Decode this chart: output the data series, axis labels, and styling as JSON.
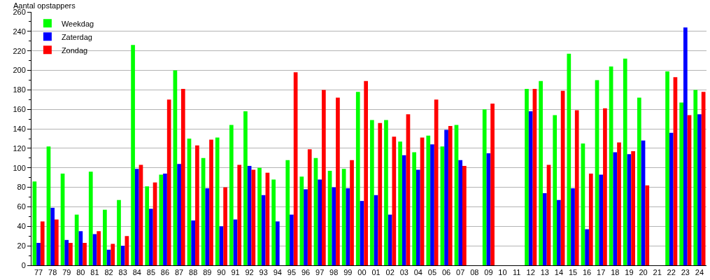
{
  "chart_data": {
    "type": "bar",
    "ylabel": "Aantal opstappers",
    "categories": [
      "77",
      "78",
      "79",
      "80",
      "81",
      "82",
      "83",
      "84",
      "85",
      "86",
      "87",
      "88",
      "89",
      "90",
      "91",
      "92",
      "93",
      "94",
      "95",
      "96",
      "97",
      "98",
      "99",
      "00",
      "01",
      "02",
      "03",
      "04",
      "05",
      "06",
      "07",
      "08",
      "09",
      "10",
      "11",
      "12",
      "13",
      "14",
      "15",
      "16",
      "17",
      "18",
      "19",
      "20",
      "21",
      "22",
      "23",
      "24"
    ],
    "series": [
      {
        "name": "Weekdag",
        "color": "#00ff00",
        "values": [
          86,
          122,
          94,
          52,
          96,
          57,
          67,
          226,
          81,
          93,
          200,
          130,
          110,
          131,
          144,
          158,
          100,
          88,
          108,
          91,
          110,
          97,
          99,
          178,
          149,
          149,
          127,
          116,
          133,
          122,
          144,
          null,
          160,
          null,
          null,
          181,
          189,
          154,
          217,
          125,
          190,
          204,
          212,
          172,
          null,
          199,
          167,
          180
        ]
      },
      {
        "name": "Zaterdag",
        "color": "#0000ff",
        "values": [
          23,
          59,
          26,
          35,
          32,
          16,
          20,
          99,
          58,
          94,
          104,
          46,
          79,
          40,
          47,
          102,
          72,
          45,
          52,
          78,
          88,
          80,
          79,
          66,
          72,
          52,
          113,
          98,
          124,
          139,
          108,
          null,
          115,
          null,
          null,
          158,
          74,
          67,
          79,
          37,
          93,
          116,
          114,
          128,
          null,
          136,
          244,
          155
        ]
      },
      {
        "name": "Zondag",
        "color": "#ff0000",
        "values": [
          45,
          47,
          23,
          23,
          35,
          22,
          30,
          103,
          85,
          170,
          181,
          123,
          129,
          80,
          103,
          98,
          95,
          null,
          198,
          119,
          180,
          172,
          108,
          189,
          146,
          132,
          155,
          131,
          170,
          143,
          102,
          null,
          166,
          null,
          null,
          181,
          103,
          179,
          159,
          94,
          161,
          126,
          117,
          82,
          null,
          193,
          154,
          178
        ]
      }
    ],
    "ylim": [
      0,
      260
    ],
    "yticks": [
      0,
      {
        "value": 10,
        "label": null
      },
      20,
      {
        "value": 30,
        "label": null
      },
      40,
      {
        "value": 50,
        "label": null
      },
      60,
      {
        "value": 70,
        "label": null
      },
      80,
      {
        "value": 90,
        "label": null
      },
      100,
      {
        "value": 110,
        "label": null
      },
      120,
      {
        "value": 130,
        "label": null
      },
      140,
      {
        "value": 150,
        "label": null
      },
      160,
      {
        "value": 170,
        "label": null
      },
      180,
      {
        "value": 190,
        "label": null
      },
      200,
      {
        "value": 210,
        "label": null
      },
      220,
      {
        "value": 230,
        "label": null
      },
      240,
      {
        "value": 250,
        "label": null
      },
      260
    ],
    "grid": "y",
    "legend": "top left"
  }
}
